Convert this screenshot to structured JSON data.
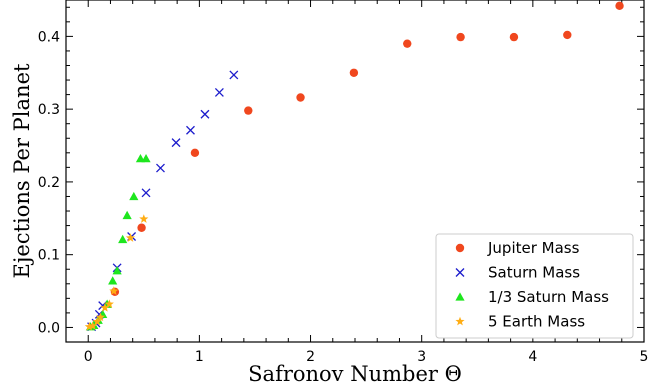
{
  "chart_data": {
    "type": "scatter",
    "xlabel": "Safronov Number Θ",
    "ylabel": "Ejections Per Planet",
    "xlim": [
      -0.2,
      5.0
    ],
    "ylim": [
      -0.02,
      0.45
    ],
    "x_ticks": [
      0,
      1,
      2,
      3,
      4,
      5
    ],
    "x_tick_labels": [
      "0",
      "1",
      "2",
      "3",
      "4",
      "5"
    ],
    "y_ticks": [
      0.0,
      0.1,
      0.2,
      0.3,
      0.4
    ],
    "y_tick_labels": [
      "0.0",
      "0.1",
      "0.2",
      "0.3",
      "0.4"
    ],
    "legend_position": "bottom-right",
    "series": [
      {
        "name": "Jupiter Mass",
        "marker": "circle",
        "color": "#f0471e",
        "points": [
          [
            0.24,
            0.049
          ],
          [
            0.48,
            0.137
          ],
          [
            0.96,
            0.24
          ],
          [
            1.44,
            0.298
          ],
          [
            1.91,
            0.316
          ],
          [
            2.39,
            0.35
          ],
          [
            2.87,
            0.39
          ],
          [
            3.35,
            0.399
          ],
          [
            3.83,
            0.399
          ],
          [
            4.31,
            0.402
          ],
          [
            4.78,
            0.442
          ]
        ]
      },
      {
        "name": "Saturn Mass",
        "marker": "x",
        "color": "#1c1ccc",
        "points": [
          [
            0.03,
            0.001
          ],
          [
            0.07,
            0.006
          ],
          [
            0.1,
            0.018
          ],
          [
            0.13,
            0.03
          ],
          [
            0.26,
            0.082
          ],
          [
            0.39,
            0.125
          ],
          [
            0.52,
            0.185
          ],
          [
            0.65,
            0.219
          ],
          [
            0.79,
            0.254
          ],
          [
            0.92,
            0.271
          ],
          [
            1.05,
            0.293
          ],
          [
            1.18,
            0.323
          ],
          [
            1.31,
            0.347
          ]
        ]
      },
      {
        "name": "1/3 Saturn Mass",
        "marker": "triangle",
        "color": "#1ee61e",
        "points": [
          [
            0.02,
            0.001
          ],
          [
            0.05,
            0.003
          ],
          [
            0.09,
            0.01
          ],
          [
            0.13,
            0.018
          ],
          [
            0.17,
            0.032
          ],
          [
            0.22,
            0.064
          ],
          [
            0.26,
            0.078
          ],
          [
            0.31,
            0.121
          ],
          [
            0.35,
            0.154
          ],
          [
            0.41,
            0.18
          ],
          [
            0.47,
            0.232
          ],
          [
            0.52,
            0.232
          ]
        ]
      },
      {
        "name": "5 Earth Mass",
        "marker": "star",
        "color": "#ffad14",
        "points": [
          [
            0.01,
            0.001
          ],
          [
            0.04,
            0.002
          ],
          [
            0.08,
            0.008
          ],
          [
            0.11,
            0.014
          ],
          [
            0.15,
            0.027
          ],
          [
            0.19,
            0.032
          ],
          [
            0.23,
            0.05
          ],
          [
            0.38,
            0.123
          ],
          [
            0.5,
            0.149
          ]
        ]
      }
    ]
  }
}
